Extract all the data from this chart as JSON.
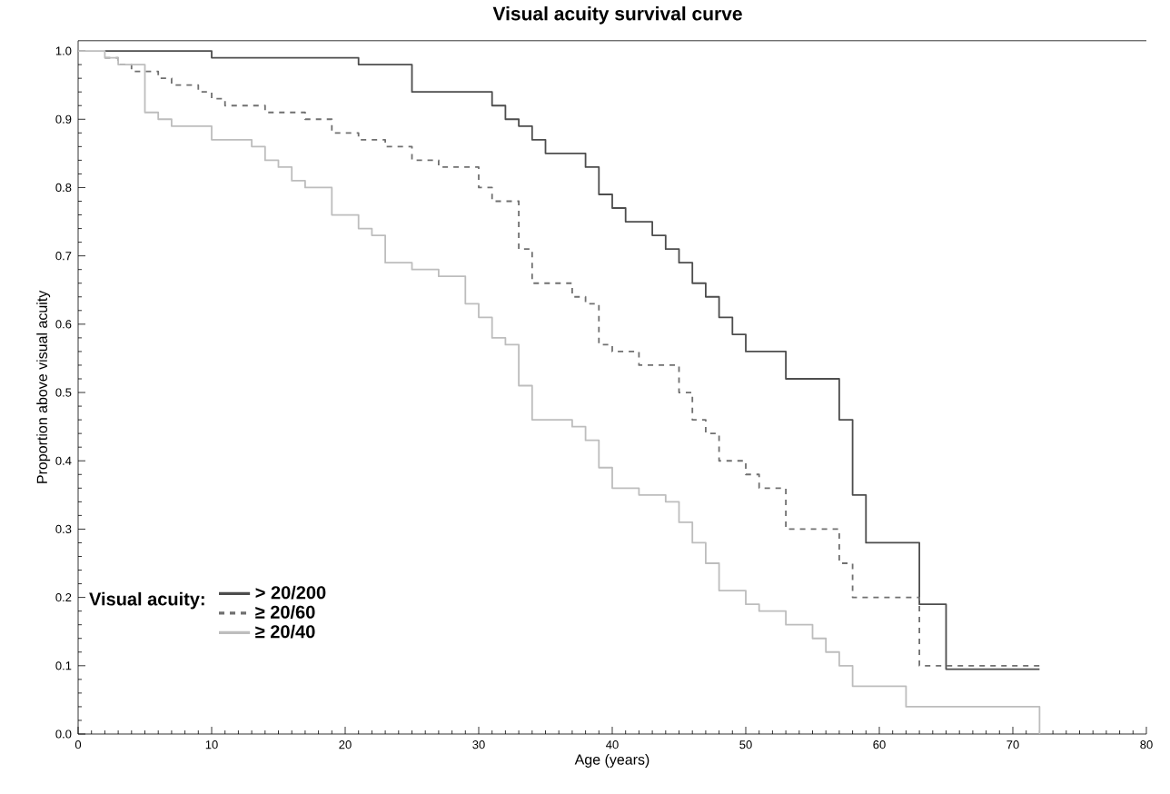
{
  "chart_data": {
    "type": "step",
    "title": "Visual acuity survival curve",
    "xlabel": "Age (years)",
    "ylabel": "Proportion above visual acuity",
    "legend_title": "Visual acuity:",
    "legend": "bottom left",
    "marker": "none",
    "xlim": [
      0,
      80
    ],
    "ylim": [
      0,
      1.015
    ],
    "xticks": [
      0,
      10,
      20,
      30,
      40,
      50,
      60,
      70,
      80
    ],
    "yticks": [
      {
        "value": 0,
        "label": "0.0"
      },
      0.1,
      0.2,
      0.3,
      0.4,
      0.5,
      0.6,
      0.7,
      0.8,
      0.9,
      {
        "value": 1.0,
        "label": "1.0"
      }
    ],
    "series": [
      {
        "name": "> 20/200",
        "color": "#4d4d4d",
        "line_style": "solid",
        "x": [
          2,
          10,
          21,
          25,
          31,
          32,
          33,
          34,
          35,
          38,
          39,
          40,
          41,
          43,
          44,
          45,
          46,
          47,
          48,
          49,
          50,
          53,
          57,
          58,
          59,
          63,
          65,
          72
        ],
        "values": [
          1.0,
          0.99,
          0.98,
          0.94,
          0.92,
          0.9,
          0.89,
          0.87,
          0.85,
          0.83,
          0.79,
          0.77,
          0.75,
          0.73,
          0.71,
          0.69,
          0.66,
          0.64,
          0.61,
          0.585,
          0.56,
          0.52,
          0.46,
          0.35,
          0.28,
          0.19,
          0.095,
          0.095
        ]
      },
      {
        "name": "≥ 20/60",
        "color": "#707070",
        "line_style": "dashed",
        "x": [
          2,
          3,
          4,
          6,
          7,
          9,
          10,
          11,
          14,
          17,
          19,
          21,
          23,
          25,
          27,
          30,
          31,
          33,
          34,
          37,
          38,
          39,
          40,
          42,
          45,
          46,
          47,
          48,
          50,
          51,
          53,
          57,
          58,
          63,
          72
        ],
        "values": [
          0.99,
          0.98,
          0.97,
          0.96,
          0.95,
          0.94,
          0.93,
          0.92,
          0.91,
          0.9,
          0.88,
          0.87,
          0.86,
          0.84,
          0.83,
          0.8,
          0.78,
          0.71,
          0.66,
          0.64,
          0.63,
          0.57,
          0.56,
          0.54,
          0.5,
          0.46,
          0.44,
          0.4,
          0.38,
          0.36,
          0.3,
          0.25,
          0.2,
          0.1,
          0.1
        ]
      },
      {
        "name": "≥ 20/40",
        "color": "#bdbdbd",
        "line_style": "solid",
        "x": [
          0,
          2,
          3,
          5,
          6,
          7,
          10,
          13,
          14,
          15,
          16,
          17,
          19,
          21,
          22,
          23,
          25,
          27,
          29,
          30,
          31,
          32,
          33,
          34,
          37,
          38,
          39,
          40,
          42,
          44,
          45,
          46,
          47,
          48,
          50,
          51,
          53,
          55,
          56,
          57,
          58,
          62,
          72
        ],
        "values": [
          1.0,
          0.99,
          0.98,
          0.91,
          0.9,
          0.89,
          0.87,
          0.86,
          0.84,
          0.83,
          0.81,
          0.8,
          0.76,
          0.74,
          0.73,
          0.69,
          0.68,
          0.67,
          0.63,
          0.61,
          0.58,
          0.57,
          0.51,
          0.46,
          0.45,
          0.43,
          0.39,
          0.36,
          0.35,
          0.34,
          0.31,
          0.28,
          0.25,
          0.21,
          0.19,
          0.18,
          0.16,
          0.14,
          0.12,
          0.1,
          0.07,
          0.04,
          0.0
        ]
      }
    ]
  }
}
